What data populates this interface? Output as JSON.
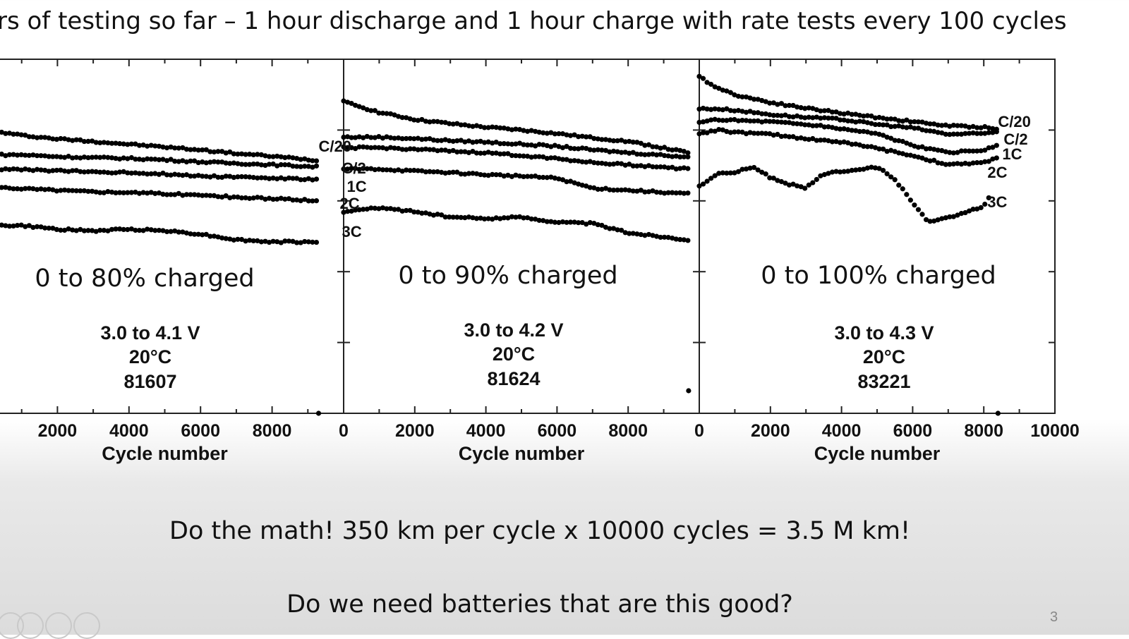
{
  "slide": {
    "title": "rs of testing so far – 1 hour discharge and 1 hour charge with rate tests every 100 cycles",
    "math_text": "Do the math!  350 km per cycle x 10000 cycles = 3.5 M km!",
    "question_text": "Do we need batteries that are this good?",
    "page_number": "3"
  },
  "chart_data": [
    {
      "type": "scatter",
      "title": "0 to 80% charged",
      "subtitle_lines": [
        "3.0 to 4.1 V",
        "20°C",
        "81607"
      ],
      "xlabel": "Cycle number",
      "xlim": [
        0,
        10000
      ],
      "ylim": [
        0,
        100
      ],
      "xticks": [
        "2000",
        "4000",
        "6000",
        "8000"
      ],
      "series": [
        {
          "name": "C/20",
          "x": [
            0,
            1000,
            2000,
            3000,
            4000,
            5000,
            6000,
            7000,
            8000,
            9300
          ],
          "values": [
            80,
            78.5,
            77.5,
            76.8,
            76,
            75.2,
            74.4,
            73.4,
            72.6,
            71.4
          ]
        },
        {
          "name": "C/2",
          "x": [
            0,
            1000,
            2000,
            3000,
            4000,
            5000,
            6000,
            7000,
            8000,
            9300
          ],
          "values": [
            73,
            73,
            72.5,
            72.2,
            72,
            71.6,
            71,
            70.6,
            70.2,
            69.6
          ]
        },
        {
          "name": "1C",
          "x": [
            0,
            1000,
            2000,
            3000,
            4000,
            5000,
            6000,
            7000,
            8000,
            9300
          ],
          "values": [
            69,
            68.8,
            68.5,
            68.2,
            68,
            67.6,
            67,
            66.8,
            66.4,
            66
          ]
        },
        {
          "name": "2C",
          "x": [
            0,
            1000,
            2000,
            3000,
            4000,
            5000,
            6000,
            7000,
            8000,
            9300
          ],
          "values": [
            64,
            63.5,
            63,
            62.6,
            62.4,
            62,
            61.6,
            61,
            60.6,
            60
          ]
        },
        {
          "name": "3C",
          "x": [
            0,
            1000,
            2000,
            3000,
            4000,
            5000,
            6000,
            7000,
            8000,
            9300
          ],
          "values": [
            53,
            53,
            52,
            51.5,
            52,
            51.6,
            50.6,
            49,
            48.4,
            48.4
          ]
        }
      ]
    },
    {
      "type": "scatter",
      "title": "0 to 90% charged",
      "subtitle_lines": [
        "3.0 to 4.2 V",
        "20°C",
        "81624"
      ],
      "xlabel": "Cycle number",
      "xlim": [
        0,
        10000
      ],
      "ylim": [
        0,
        100
      ],
      "xticks": [
        "0",
        "2000",
        "4000",
        "6000",
        "8000"
      ],
      "series": [
        {
          "name": "C/20",
          "x": [
            0,
            1000,
            2000,
            3000,
            4000,
            5000,
            6000,
            7000,
            8000,
            9700
          ],
          "values": [
            88,
            85,
            83,
            81.8,
            80.8,
            80,
            79,
            77.8,
            76.8,
            73.6
          ]
        },
        {
          "name": "C/2",
          "x": [
            0,
            1000,
            2000,
            3000,
            4000,
            5000,
            6000,
            7000,
            8000,
            9700
          ],
          "values": [
            78,
            78,
            77.6,
            77,
            76.6,
            76,
            75.4,
            74.4,
            73.6,
            72.4
          ]
        },
        {
          "name": "1C",
          "x": [
            0,
            1000,
            2000,
            3000,
            4000,
            5000,
            6000,
            7000,
            8000,
            9700
          ],
          "values": [
            75,
            75,
            74.6,
            74,
            73.6,
            72.8,
            72,
            70.8,
            70.2,
            69
          ]
        },
        {
          "name": "2C",
          "x": [
            0,
            1000,
            2000,
            3000,
            4000,
            5000,
            6000,
            7000,
            8000,
            9700
          ],
          "values": [
            69,
            69,
            68.4,
            68,
            67.4,
            67,
            66.4,
            63.6,
            63,
            62
          ]
        },
        {
          "name": "3C",
          "x": [
            0,
            1000,
            2000,
            3000,
            4000,
            5000,
            6000,
            7000,
            8000,
            9700
          ],
          "values": [
            57,
            58,
            57,
            55.4,
            55,
            55.4,
            54,
            53.6,
            51,
            49
          ]
        }
      ]
    },
    {
      "type": "scatter",
      "title": "0 to 100% charged",
      "subtitle_lines": [
        "3.0 to 4.3 V",
        "20°C",
        "83221"
      ],
      "xlabel": "Cycle number",
      "xlim": [
        0,
        10000
      ],
      "ylim": [
        0,
        100
      ],
      "xticks": [
        "0",
        "2000",
        "4000",
        "6000",
        "8000",
        "10000"
      ],
      "series": [
        {
          "name": "C/20",
          "x": [
            0,
            500,
            1000,
            2000,
            3000,
            4000,
            5000,
            6000,
            7000,
            8000,
            8400
          ],
          "values": [
            95,
            92,
            90,
            87.8,
            86.2,
            84.8,
            83.6,
            82.4,
            81.2,
            80.8,
            80.4
          ]
        },
        {
          "name": "C/2",
          "x": [
            0,
            500,
            1000,
            2000,
            3000,
            4000,
            5000,
            6000,
            7000,
            8000,
            8400
          ],
          "values": [
            86,
            86,
            85.6,
            84.4,
            83.6,
            83,
            81.6,
            80.6,
            78.8,
            79,
            79.6
          ]
        },
        {
          "name": "1C",
          "x": [
            0,
            500,
            1000,
            2000,
            3000,
            4000,
            5000,
            6000,
            7000,
            8000,
            8400
          ],
          "values": [
            82,
            83,
            82.8,
            82.4,
            81.6,
            80.4,
            79,
            75.6,
            73.6,
            74.4,
            75.6
          ]
        },
        {
          "name": "2C",
          "x": [
            0,
            500,
            1000,
            2000,
            3000,
            4000,
            5000,
            6000,
            7000,
            8000,
            8400
          ],
          "values": [
            79,
            80,
            79.4,
            78.8,
            77.6,
            76.6,
            74.8,
            72.8,
            70.2,
            70.8,
            72.4
          ]
        },
        {
          "name": "3C",
          "x": [
            0,
            500,
            1000,
            1500,
            2000,
            2500,
            3000,
            3500,
            4000,
            4500,
            5000,
            5500,
            6000,
            6400,
            7000,
            7500,
            8000,
            8200
          ],
          "values": [
            64,
            67.6,
            68,
            69.6,
            66.6,
            64.8,
            63.6,
            67.6,
            68.4,
            69,
            69.6,
            66,
            59.6,
            54.2,
            55.2,
            56.6,
            58.6,
            62
          ]
        }
      ]
    }
  ]
}
